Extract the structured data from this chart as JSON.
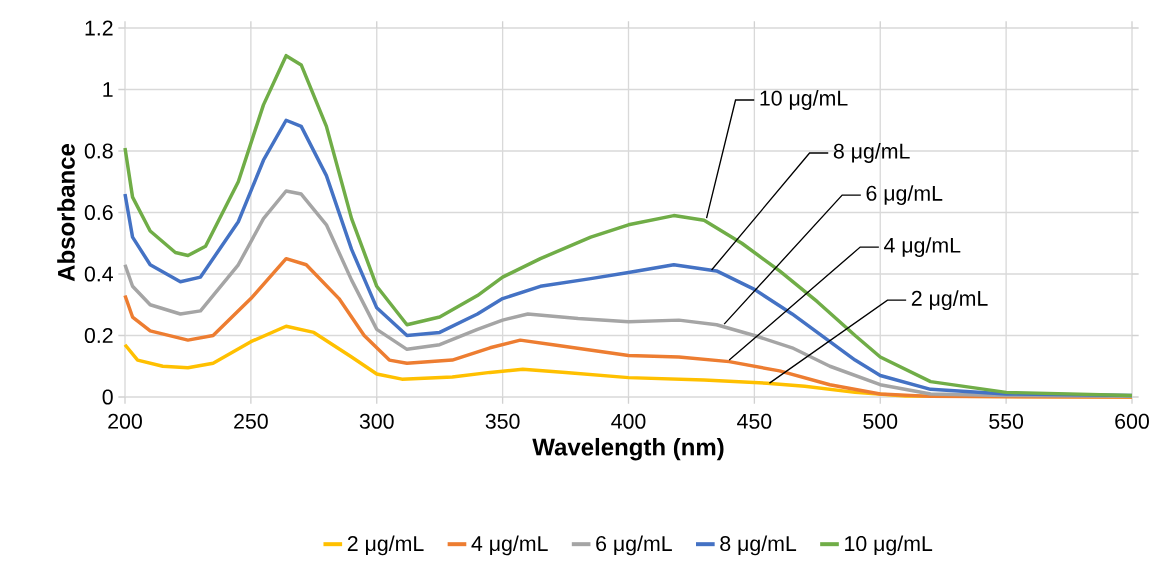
{
  "chart_data": {
    "type": "line",
    "xlabel": "Wavelength (nm)",
    "ylabel": "Absorbance",
    "xlim": [
      200,
      600
    ],
    "ylim": [
      0,
      1.2
    ],
    "xticks": [
      200,
      250,
      300,
      350,
      400,
      450,
      500,
      550,
      600
    ],
    "yticks": [
      0,
      0.2,
      0.4,
      0.6,
      0.8,
      1,
      1.2
    ],
    "grid": true,
    "legend": "bottom",
    "marker": "none",
    "line_style": "solid",
    "series": [
      {
        "name": "2 μg/mL",
        "color": "#ffc000",
        "x": [
          200,
          205,
          215,
          225,
          235,
          250,
          264,
          275,
          290,
          300,
          310,
          330,
          345,
          358,
          375,
          400,
          430,
          455,
          470,
          490,
          510,
          600
        ],
        "values": [
          0.17,
          0.12,
          0.1,
          0.095,
          0.11,
          0.18,
          0.23,
          0.21,
          0.13,
          0.075,
          0.058,
          0.065,
          0.08,
          0.09,
          0.08,
          0.063,
          0.055,
          0.045,
          0.035,
          0.015,
          0.003,
          0
        ]
      },
      {
        "name": "4 μg/mL",
        "color": "#ed7d31",
        "x": [
          200,
          203,
          210,
          225,
          235,
          250,
          264,
          272,
          285,
          295,
          305,
          312,
          330,
          345,
          357,
          370,
          400,
          420,
          440,
          460,
          480,
          500,
          520,
          600
        ],
        "values": [
          0.33,
          0.26,
          0.215,
          0.185,
          0.2,
          0.32,
          0.45,
          0.43,
          0.32,
          0.2,
          0.12,
          0.11,
          0.12,
          0.16,
          0.185,
          0.17,
          0.135,
          0.13,
          0.115,
          0.085,
          0.04,
          0.01,
          0.002,
          0
        ]
      },
      {
        "name": "6 μg/mL",
        "color": "#a5a5a5",
        "x": [
          200,
          203,
          210,
          222,
          230,
          245,
          255,
          264,
          270,
          280,
          290,
          300,
          312,
          325,
          340,
          350,
          360,
          380,
          400,
          420,
          435,
          450,
          465,
          480,
          500,
          520,
          550,
          600
        ],
        "values": [
          0.43,
          0.36,
          0.3,
          0.27,
          0.28,
          0.43,
          0.58,
          0.67,
          0.66,
          0.56,
          0.38,
          0.22,
          0.155,
          0.17,
          0.22,
          0.25,
          0.27,
          0.255,
          0.245,
          0.25,
          0.235,
          0.2,
          0.16,
          0.1,
          0.04,
          0.01,
          0.005,
          0.002
        ]
      },
      {
        "name": "8 μg/mL",
        "color": "#4472c4",
        "x": [
          200,
          203,
          210,
          222,
          230,
          245,
          255,
          264,
          270,
          280,
          290,
          300,
          312,
          325,
          340,
          350,
          365,
          385,
          400,
          418,
          435,
          450,
          465,
          480,
          490,
          500,
          520,
          550,
          600
        ],
        "values": [
          0.66,
          0.52,
          0.43,
          0.375,
          0.39,
          0.57,
          0.77,
          0.9,
          0.88,
          0.72,
          0.48,
          0.29,
          0.2,
          0.21,
          0.27,
          0.32,
          0.36,
          0.385,
          0.405,
          0.43,
          0.41,
          0.35,
          0.27,
          0.18,
          0.12,
          0.07,
          0.025,
          0.01,
          0.005
        ]
      },
      {
        "name": "10 μg/mL",
        "color": "#70ad47",
        "x": [
          200,
          203,
          210,
          220,
          225,
          232,
          245,
          255,
          264,
          270,
          280,
          290,
          300,
          312,
          325,
          340,
          350,
          365,
          385,
          400,
          418,
          430,
          445,
          460,
          475,
          490,
          500,
          520,
          550,
          600
        ],
        "values": [
          0.81,
          0.65,
          0.54,
          0.47,
          0.46,
          0.49,
          0.7,
          0.95,
          1.11,
          1.08,
          0.88,
          0.58,
          0.36,
          0.235,
          0.26,
          0.33,
          0.39,
          0.45,
          0.52,
          0.56,
          0.59,
          0.575,
          0.5,
          0.41,
          0.31,
          0.2,
          0.13,
          0.05,
          0.015,
          0.005
        ]
      }
    ],
    "annotations": [
      {
        "text": "2 μg/mL",
        "x": 456,
        "y": 0.045
      },
      {
        "text": "4 μg/mL",
        "x": 440,
        "y": 0.12
      },
      {
        "text": "6 μg/mL",
        "x": 438,
        "y": 0.237
      },
      {
        "text": "8 μg/mL",
        "x": 433,
        "y": 0.413
      },
      {
        "text": "10 μg/mL",
        "x": 431,
        "y": 0.582
      }
    ]
  }
}
